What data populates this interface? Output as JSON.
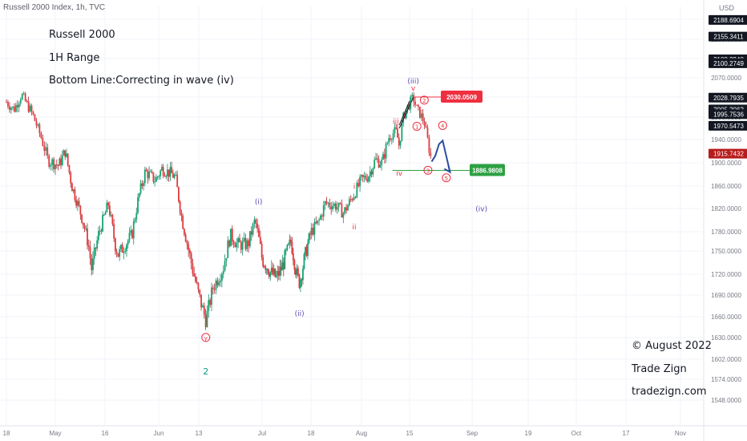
{
  "header": {
    "symbol": "Russell 2000 Index, 1h, TVC",
    "currency": "USD"
  },
  "annotations": {
    "title": "Russell 2000",
    "subtitle": "1H Range",
    "bottom_line": "Bottom Line:Correcting in wave (iv)",
    "copyright": "© August 2022",
    "brand": "Trade Zign",
    "website": "tradezign.com"
  },
  "price_badges": [
    {
      "value": "2188.6904",
      "price": 2188.6904,
      "color": "#131722"
    },
    {
      "value": "2155.3411",
      "price": 2155.3411,
      "color": "#131722"
    },
    {
      "value": "2108.2940",
      "price": 2108.294,
      "color": "#131722"
    },
    {
      "value": "2100.2749",
      "price": 2100.2749,
      "color": "#131722"
    },
    {
      "value": "2028.7935",
      "price": 2028.7935,
      "color": "#131722"
    },
    {
      "value": "2005.2062",
      "price": 2005.2062,
      "color": "#131722"
    },
    {
      "value": "1995.7536",
      "price": 1995.7536,
      "color": "#131722"
    },
    {
      "value": "1970.5473",
      "price": 1970.5473,
      "color": "#131722"
    },
    {
      "value": "1915.7432",
      "price": 1915.7432,
      "color": "#b71c1c"
    }
  ],
  "levels": [
    {
      "label": "2030.0509",
      "price": 2030.0509,
      "color": "#ef2f40"
    },
    {
      "label": "1886.9808",
      "price": 1886.9808,
      "color": "#2ea043"
    }
  ],
  "wave_labels": [
    {
      "text": "2",
      "date": "2022-06-15",
      "price": 1581,
      "color": "#089981",
      "circled": false
    },
    {
      "text": "y",
      "date": "2022-06-15",
      "price": 1627,
      "color": "#ef2f40",
      "circled": true
    },
    {
      "text": "(i)",
      "date": "2022-06-30",
      "price": 1828,
      "color": "#5c4bb5",
      "circled": false
    },
    {
      "text": "(ii)",
      "date": "2022-07-14",
      "price": 1661,
      "color": "#5c4bb5",
      "circled": false
    },
    {
      "text": "i",
      "date": "2022-07-30",
      "price": 1855,
      "color": "#ef2f40",
      "circled": false
    },
    {
      "text": "ii",
      "date": "2022-07-30",
      "price": 1784,
      "color": "#ef2f40",
      "circled": false
    },
    {
      "text": "iii",
      "date": "2022-08-11",
      "price": 1975,
      "color": "#ef2f40",
      "circled": false
    },
    {
      "text": "iv",
      "date": "2022-08-12",
      "price": 1878,
      "color": "#ef2f40",
      "circled": false
    },
    {
      "text": "(iii)",
      "date": "2022-08-16",
      "price": 2058,
      "color": "#5c4bb5",
      "circled": false
    },
    {
      "text": "v",
      "date": "2022-08-16",
      "price": 2043,
      "color": "#ef2f40",
      "circled": false
    },
    {
      "text": "1",
      "date": "2022-08-17",
      "price": 1964,
      "color": "#ef2f40",
      "circled": true
    },
    {
      "text": "2",
      "date": "2022-08-19",
      "price": 2019,
      "color": "#ef2f40",
      "circled": true
    },
    {
      "text": "3",
      "date": "2022-08-20",
      "price": 1883,
      "color": "#ef2f40",
      "circled": true
    },
    {
      "text": "4",
      "date": "2022-08-24",
      "price": 1966,
      "color": "#ef2f40",
      "circled": true
    },
    {
      "text": "5",
      "date": "2022-08-25",
      "price": 1870,
      "color": "#ef2f40",
      "circled": true
    },
    {
      "text": "(iv)",
      "date": "2022-09-04",
      "price": 1815,
      "color": "#5c4bb5",
      "circled": false
    }
  ],
  "chart_data": {
    "type": "candlestick",
    "title": "Russell 2000 Index, 1h, TVC",
    "currency": "USD",
    "x_ticks": [
      "18",
      "May",
      "16",
      "Jun",
      "13",
      "Jul",
      "18",
      "Aug",
      "15",
      "Sep",
      "19",
      "Oct",
      "17",
      "Nov"
    ],
    "y_ticks": [
      2190,
      2150,
      2110,
      2070,
      2030,
      1990,
      1940,
      1900,
      1860,
      1820,
      1780,
      1750,
      1720,
      1690,
      1660,
      1630,
      1602,
      1574,
      1548
    ],
    "y_tick_labels": [
      "2190.0000",
      "2150.0000",
      "2110.0000",
      "2070.0000",
      "2030.0000",
      "1990.0000",
      "1940.0000",
      "1900.0000",
      "1860.0000",
      "1820.0000",
      "1780.0000",
      "1750.0000",
      "1720.0000",
      "1690.0000",
      "1660.0000",
      "1630.0000",
      "1602.0000",
      "1574.0000",
      "1548.0000"
    ],
    "ylim": [
      1536,
      2215
    ],
    "price_path": [
      [
        "2022-04-18",
        2020
      ],
      [
        "2022-04-20",
        2005
      ],
      [
        "2022-04-22",
        2035
      ],
      [
        "2022-04-25",
        1995
      ],
      [
        "2022-04-27",
        1950
      ],
      [
        "2022-04-29",
        1905
      ],
      [
        "2022-05-02",
        1895
      ],
      [
        "2022-05-04",
        1920
      ],
      [
        "2022-05-06",
        1860
      ],
      [
        "2022-05-09",
        1805
      ],
      [
        "2022-05-11",
        1760
      ],
      [
        "2022-05-12",
        1725
      ],
      [
        "2022-05-14",
        1775
      ],
      [
        "2022-05-17",
        1828
      ],
      [
        "2022-05-19",
        1760
      ],
      [
        "2022-05-20",
        1745
      ],
      [
        "2022-05-24",
        1775
      ],
      [
        "2022-05-26",
        1840
      ],
      [
        "2022-05-28",
        1885
      ],
      [
        "2022-05-31",
        1870
      ],
      [
        "2022-06-02",
        1890
      ],
      [
        "2022-06-05",
        1880
      ],
      [
        "2022-06-06",
        1875
      ],
      [
        "2022-06-08",
        1800
      ],
      [
        "2022-06-10",
        1750
      ],
      [
        "2022-06-13",
        1690
      ],
      [
        "2022-06-15",
        1655
      ],
      [
        "2022-06-17",
        1700
      ],
      [
        "2022-06-20",
        1730
      ],
      [
        "2022-06-22",
        1775
      ],
      [
        "2022-06-24",
        1760
      ],
      [
        "2022-06-27",
        1760
      ],
      [
        "2022-06-29",
        1800
      ],
      [
        "2022-07-01",
        1740
      ],
      [
        "2022-07-04",
        1722
      ],
      [
        "2022-07-06",
        1715
      ],
      [
        "2022-07-08",
        1730
      ],
      [
        "2022-07-11",
        1765
      ],
      [
        "2022-07-13",
        1720
      ],
      [
        "2022-07-14",
        1708
      ],
      [
        "2022-07-16",
        1745
      ],
      [
        "2022-07-18",
        1780
      ],
      [
        "2022-07-20",
        1795
      ],
      [
        "2022-07-22",
        1830
      ],
      [
        "2022-07-25",
        1825
      ],
      [
        "2022-07-27",
        1812
      ],
      [
        "2022-07-29",
        1835
      ],
      [
        "2022-08-01",
        1870
      ],
      [
        "2022-08-03",
        1878
      ],
      [
        "2022-08-05",
        1905
      ],
      [
        "2022-08-07",
        1900
      ],
      [
        "2022-08-09",
        1945
      ],
      [
        "2022-08-11",
        1960
      ],
      [
        "2022-08-12",
        1928
      ],
      [
        "2022-08-13",
        1985
      ],
      [
        "2022-08-14",
        2005
      ],
      [
        "2022-08-16",
        2029
      ],
      [
        "2022-08-17",
        2005
      ],
      [
        "2022-08-18",
        1995
      ],
      [
        "2022-08-19",
        1978
      ],
      [
        "2022-08-20",
        1935
      ],
      [
        "2022-08-21",
        1902
      ]
    ],
    "projection": [
      [
        "2022-08-21",
        1902
      ],
      [
        "2022-08-22",
        1912
      ],
      [
        "2022-08-23",
        1932
      ],
      [
        "2022-08-24",
        1938
      ],
      [
        "2022-08-26",
        1884
      ]
    ],
    "impulse_lines": [
      [
        [
          "2022-08-12",
          1972
        ],
        [
          "2022-08-15",
          2022
        ]
      ],
      [
        [
          "2022-08-12",
          1965
        ],
        [
          "2022-08-16",
          2029
        ]
      ]
    ]
  }
}
